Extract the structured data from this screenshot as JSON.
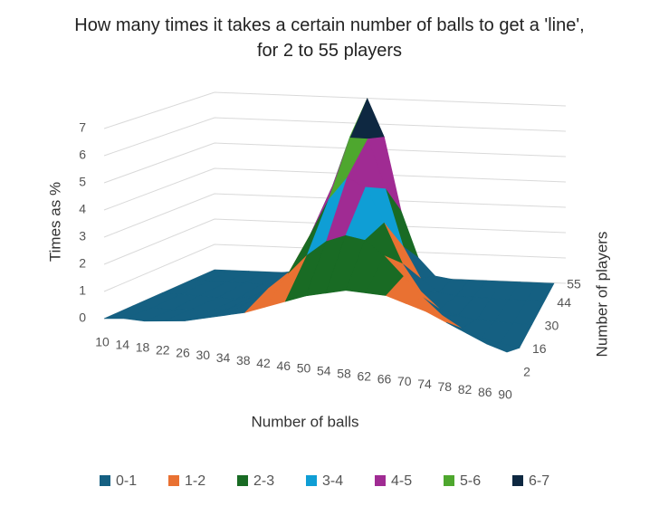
{
  "chart_data": {
    "type": "surface",
    "title": "How many times it takes a certain number of balls to get a 'line', for 2 to 55 players",
    "x_label": "Number of balls",
    "y_label": "Times as %",
    "depth_label": "Number of players",
    "x": [
      10,
      14,
      18,
      22,
      26,
      30,
      34,
      38,
      42,
      46,
      50,
      54,
      58,
      62,
      66,
      70,
      74,
      78,
      82,
      86,
      90
    ],
    "depth": [
      2,
      16,
      30,
      44,
      55
    ],
    "values": [
      [
        0.0,
        0.1,
        0.1,
        0.2,
        0.3,
        0.5,
        0.7,
        0.9,
        1.2,
        1.5,
        1.8,
        2.0,
        2.2,
        2.2,
        2.2,
        2.0,
        1.8,
        1.5,
        1.2,
        0.9,
        0.7
      ],
      [
        0,
        0,
        0,
        0.1,
        0.1,
        0.3,
        0.6,
        1.2,
        1.8,
        2.6,
        3.2,
        3.5,
        3.4,
        2.9,
        2.2,
        1.5,
        0.9,
        0.5,
        0.2,
        0.1,
        0
      ],
      [
        0,
        0,
        0,
        0,
        0,
        0.2,
        0.5,
        1.3,
        2.7,
        4.1,
        5.0,
        4.7,
        3.4,
        1.9,
        0.9,
        0.3,
        0.1,
        0,
        0,
        0,
        0
      ],
      [
        0,
        0,
        0,
        0,
        0,
        0.1,
        0.6,
        1.8,
        4.0,
        5.9,
        5.9,
        4.0,
        1.8,
        0.6,
        0.1,
        0,
        0,
        0,
        0,
        0,
        0
      ],
      [
        0,
        0,
        0,
        0,
        0,
        0.1,
        0.8,
        2.6,
        5.5,
        7.0,
        5.5,
        2.6,
        0.8,
        0.1,
        0,
        0,
        0,
        0,
        0,
        0,
        0
      ]
    ],
    "ylim": [
      0,
      7
    ],
    "yticks": [
      0,
      1,
      2,
      3,
      4,
      5,
      6,
      7
    ],
    "xlim": [
      10,
      90
    ],
    "depthlim": [
      2,
      55
    ],
    "depthticks": [
      2,
      16,
      30,
      44,
      55
    ],
    "bands": [
      {
        "name": "0-1",
        "color": "#156082"
      },
      {
        "name": "1-2",
        "color": "#e97132"
      },
      {
        "name": "2-3",
        "color": "#196b24"
      },
      {
        "name": "3-4",
        "color": "#0f9ed5"
      },
      {
        "name": "4-5",
        "color": "#a02b93"
      },
      {
        "name": "5-6",
        "color": "#4ea72e"
      },
      {
        "name": "6-7",
        "color": "#0e2841"
      }
    ],
    "grid": true
  }
}
